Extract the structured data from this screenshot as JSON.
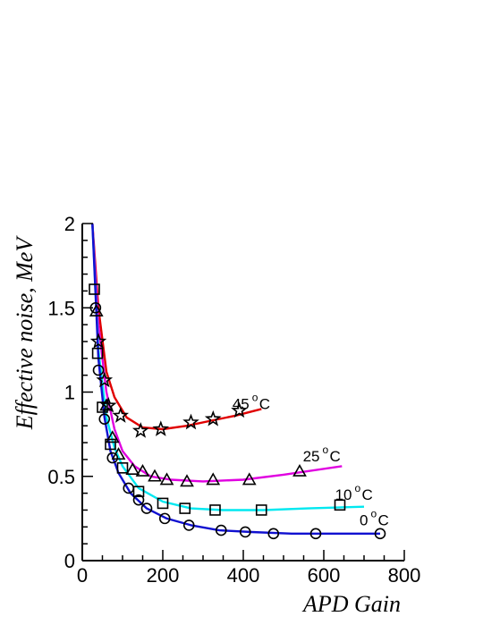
{
  "chart_data": {
    "type": "scatter",
    "title": "",
    "xlabel": "APD Gain",
    "ylabel": "Effective noise, MeV",
    "xlim": [
      0,
      800
    ],
    "ylim": [
      0,
      2
    ],
    "x_ticks": [
      "0",
      "200",
      "400",
      "600",
      "800"
    ],
    "y_ticks": [
      "0",
      "0.5",
      "1",
      "1.5",
      "2"
    ],
    "grid": false,
    "series": [
      {
        "marker": "star",
        "fit_color": "#e00000",
        "points": [
          [
            40,
            1.3
          ],
          [
            55,
            1.07
          ],
          [
            65,
            0.92
          ],
          [
            95,
            0.86
          ],
          [
            145,
            0.77
          ],
          [
            195,
            0.78
          ],
          [
            270,
            0.82
          ],
          [
            325,
            0.84
          ],
          [
            390,
            0.89
          ]
        ],
        "fit": [
          [
            25,
            2.0
          ],
          [
            40,
            1.5
          ],
          [
            60,
            1.12
          ],
          [
            80,
            0.97
          ],
          [
            110,
            0.85
          ],
          [
            150,
            0.79
          ],
          [
            200,
            0.78
          ],
          [
            260,
            0.8
          ],
          [
            320,
            0.83
          ],
          [
            380,
            0.86
          ],
          [
            445,
            0.9
          ]
        ]
      },
      {
        "marker": "triangle",
        "fit_color": "#e000e0",
        "points": [
          [
            35,
            1.48
          ],
          [
            60,
            0.92
          ],
          [
            75,
            0.73
          ],
          [
            90,
            0.63
          ],
          [
            125,
            0.54
          ],
          [
            150,
            0.53
          ],
          [
            180,
            0.5
          ],
          [
            210,
            0.48
          ],
          [
            260,
            0.47
          ],
          [
            325,
            0.48
          ],
          [
            415,
            0.48
          ],
          [
            540,
            0.53
          ]
        ],
        "fit": [
          [
            25,
            2.0
          ],
          [
            40,
            1.4
          ],
          [
            60,
            1.0
          ],
          [
            80,
            0.78
          ],
          [
            100,
            0.65
          ],
          [
            130,
            0.56
          ],
          [
            170,
            0.5
          ],
          [
            220,
            0.48
          ],
          [
            300,
            0.47
          ],
          [
            400,
            0.48
          ],
          [
            500,
            0.51
          ],
          [
            645,
            0.56
          ]
        ]
      },
      {
        "marker": "square",
        "fit_color": "#00e8f0",
        "points": [
          [
            30,
            1.61
          ],
          [
            38,
            1.23
          ],
          [
            50,
            0.91
          ],
          [
            70,
            0.69
          ],
          [
            100,
            0.55
          ],
          [
            140,
            0.41
          ],
          [
            200,
            0.34
          ],
          [
            255,
            0.31
          ],
          [
            330,
            0.3
          ],
          [
            445,
            0.3
          ],
          [
            640,
            0.33
          ]
        ],
        "fit": [
          [
            25,
            2.0
          ],
          [
            40,
            1.25
          ],
          [
            60,
            0.85
          ],
          [
            80,
            0.67
          ],
          [
            100,
            0.56
          ],
          [
            140,
            0.43
          ],
          [
            200,
            0.35
          ],
          [
            270,
            0.31
          ],
          [
            350,
            0.3
          ],
          [
            450,
            0.3
          ],
          [
            560,
            0.31
          ],
          [
            700,
            0.32
          ]
        ]
      },
      {
        "marker": "circle",
        "fit_color": "#1010d0",
        "points": [
          [
            33,
            1.5
          ],
          [
            40,
            1.13
          ],
          [
            55,
            0.84
          ],
          [
            75,
            0.61
          ],
          [
            115,
            0.43
          ],
          [
            140,
            0.36
          ],
          [
            160,
            0.31
          ],
          [
            205,
            0.25
          ],
          [
            265,
            0.21
          ],
          [
            345,
            0.18
          ],
          [
            405,
            0.17
          ],
          [
            475,
            0.16
          ],
          [
            580,
            0.16
          ],
          [
            740,
            0.16
          ]
        ],
        "fit": [
          [
            25,
            2.0
          ],
          [
            40,
            1.2
          ],
          [
            55,
            0.85
          ],
          [
            70,
            0.65
          ],
          [
            90,
            0.52
          ],
          [
            120,
            0.4
          ],
          [
            160,
            0.31
          ],
          [
            210,
            0.25
          ],
          [
            270,
            0.21
          ],
          [
            340,
            0.18
          ],
          [
            420,
            0.17
          ],
          [
            520,
            0.16
          ],
          [
            740,
            0.16
          ]
        ]
      }
    ],
    "annotations": [
      {
        "value": "45",
        "unit": "C",
        "deg": "o",
        "x": 415,
        "y": 0.9
      },
      {
        "value": "25",
        "unit": "C",
        "deg": "o",
        "x": 590,
        "y": 0.59
      },
      {
        "value": "10",
        "unit": "C",
        "deg": "o",
        "x": 670,
        "y": 0.36
      },
      {
        "value": "0",
        "unit": "C",
        "deg": "o",
        "x": 710,
        "y": 0.21
      }
    ]
  }
}
